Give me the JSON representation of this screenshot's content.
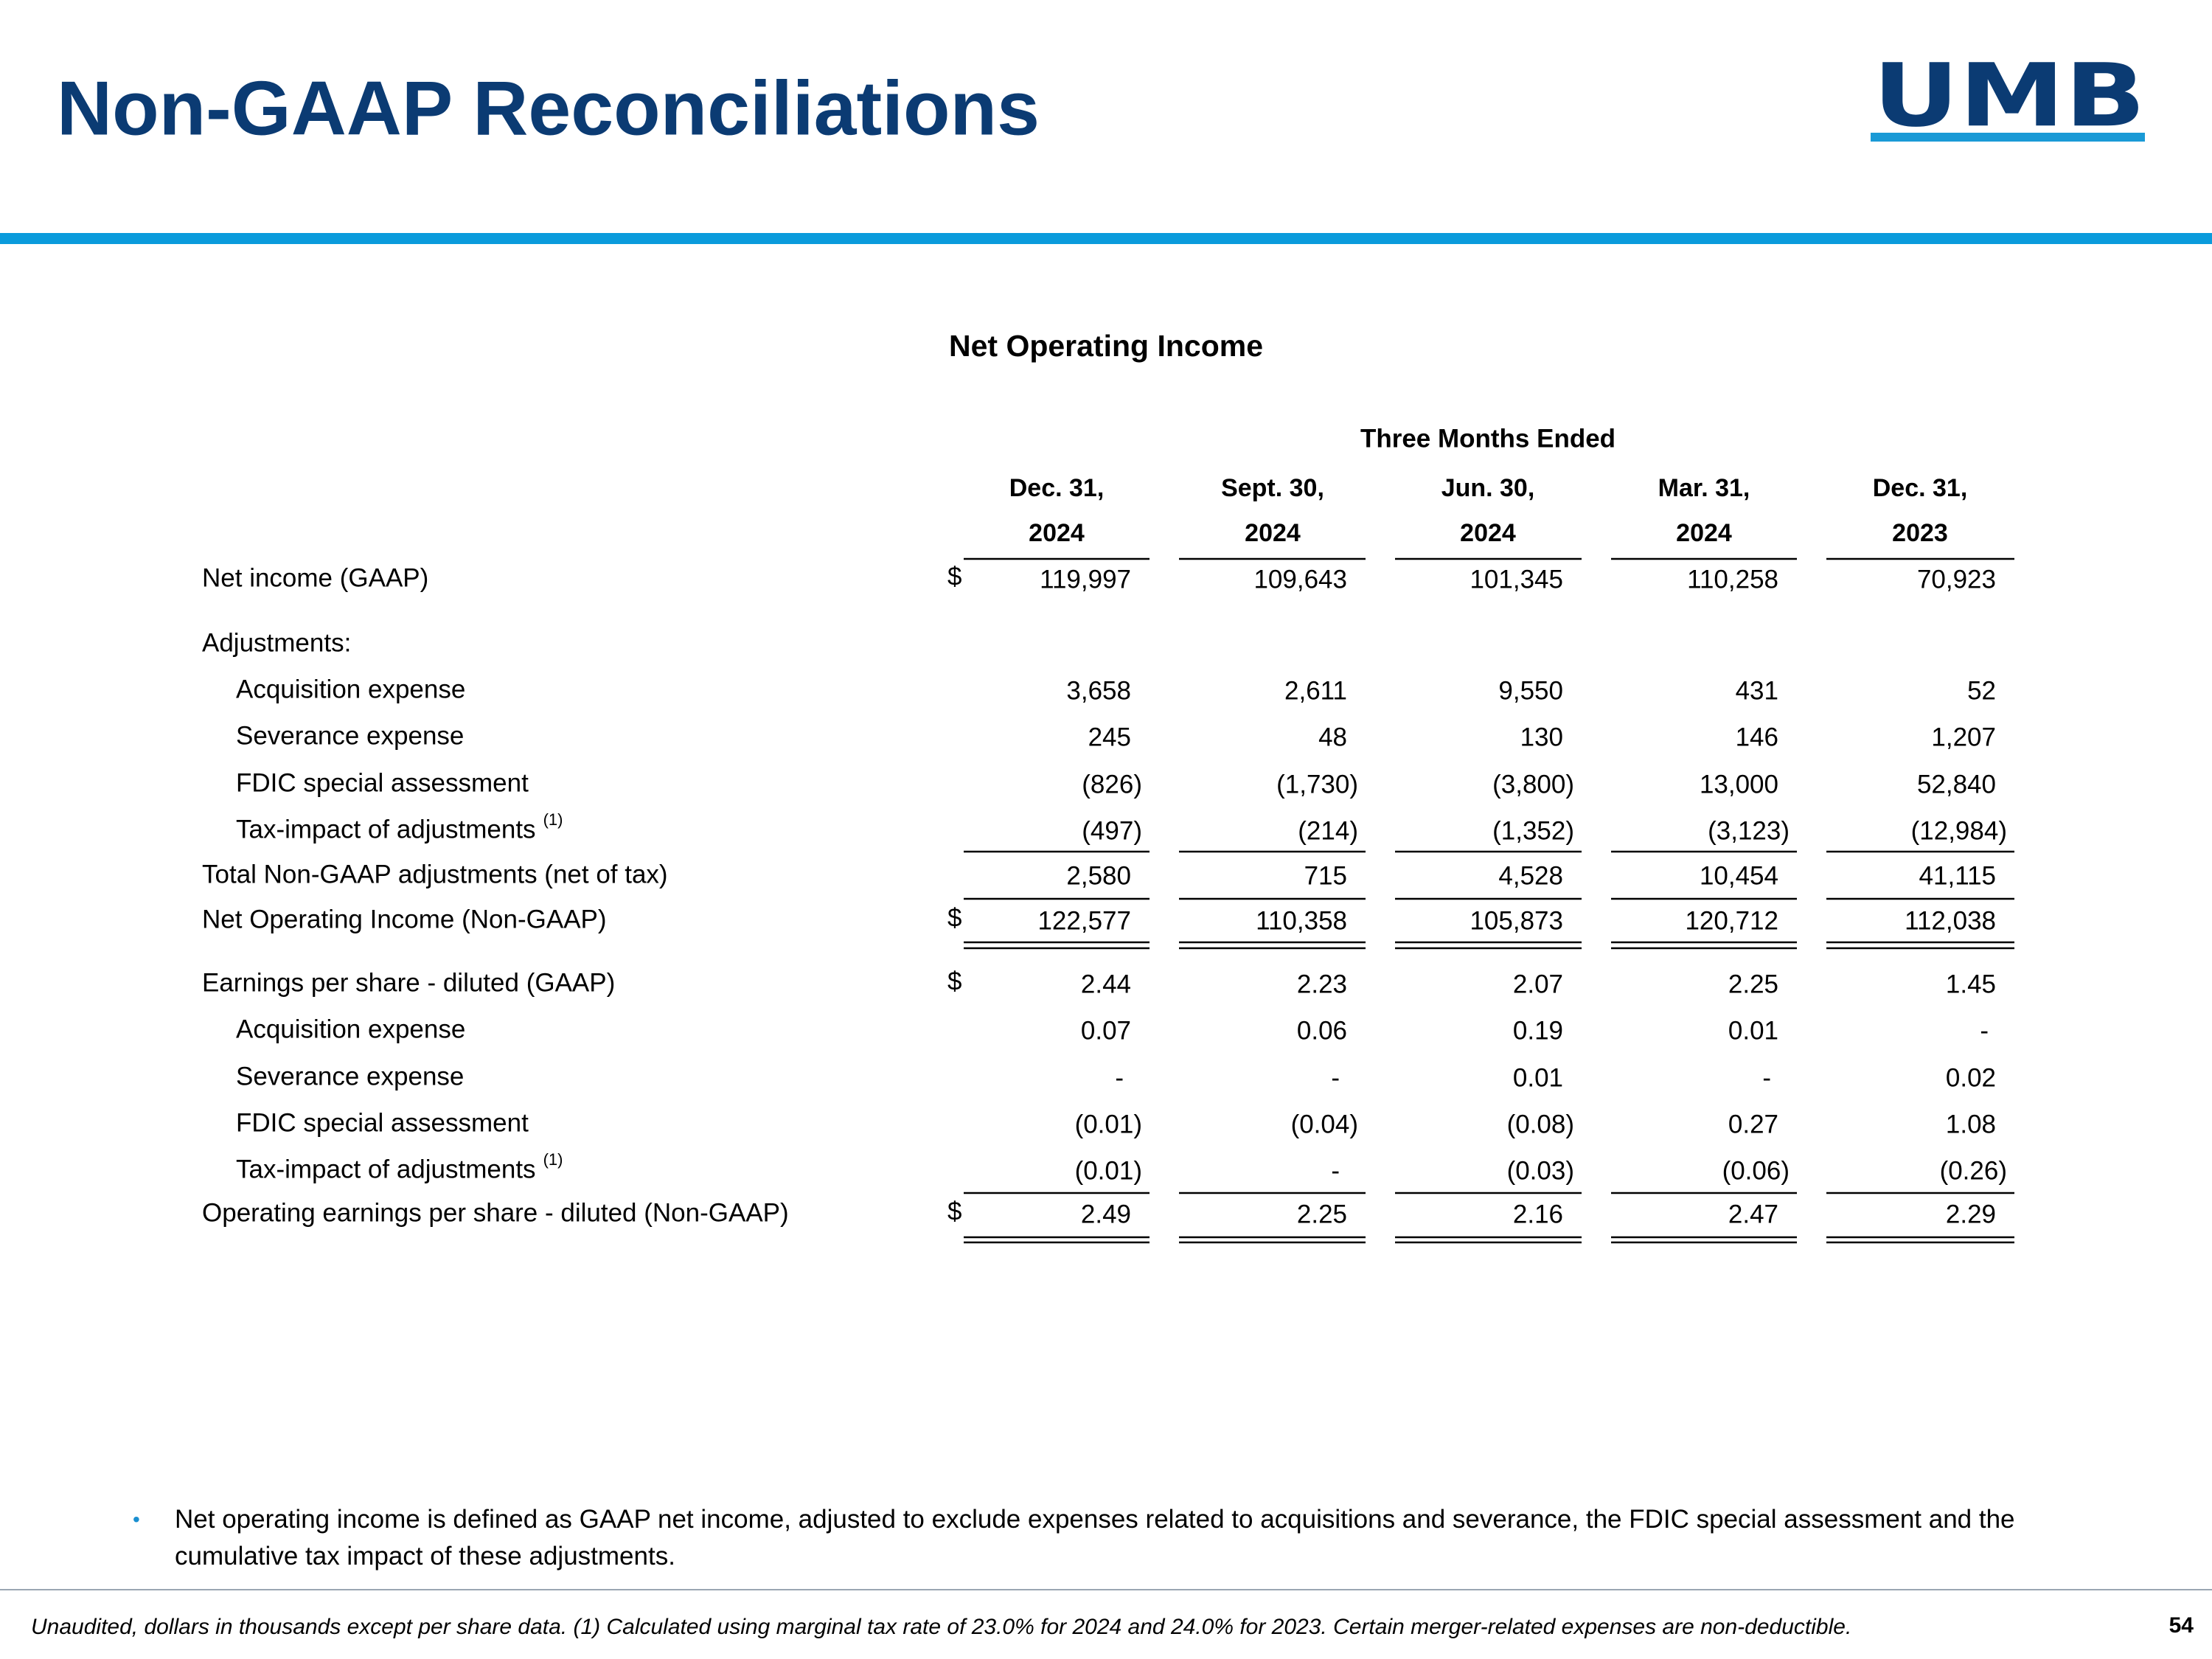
{
  "header": {
    "title": "Non-GAAP Reconciliations",
    "logo": "UMB"
  },
  "table": {
    "title": "Net Operating Income",
    "group_header": "Three Months Ended",
    "columns": [
      [
        "Dec. 31,",
        "2024"
      ],
      [
        "Sept. 30,",
        "2024"
      ],
      [
        "Jun. 30,",
        "2024"
      ],
      [
        "Mar. 31,",
        "2024"
      ],
      [
        "Dec. 31,",
        "2023"
      ]
    ],
    "rows": [
      {
        "label": "Net income (GAAP)",
        "currency": "$",
        "values": [
          "119,997",
          "109,643",
          "101,345",
          "110,258",
          "70,923"
        ]
      },
      {
        "label": "Adjustments:"
      },
      {
        "label": "Acquisition expense",
        "values": [
          "3,658",
          "2,611",
          "9,550",
          "431",
          "52"
        ]
      },
      {
        "label": "Severance expense",
        "values": [
          "245",
          "48",
          "130",
          "146",
          "1,207"
        ]
      },
      {
        "label": "FDIC special assessment",
        "values": [
          "(826)",
          "(1,730)",
          "(3,800)",
          "13,000",
          "52,840"
        ]
      },
      {
        "label": "Tax-impact of adjustments",
        "note": "(1)",
        "values": [
          "(497)",
          "(214)",
          "(1,352)",
          "(3,123)",
          "(12,984)"
        ]
      },
      {
        "label": "Total Non-GAAP adjustments (net of tax)",
        "values": [
          "2,580",
          "715",
          "4,528",
          "10,454",
          "41,115"
        ]
      },
      {
        "label": "Net Operating Income (Non-GAAP)",
        "currency": "$",
        "values": [
          "122,577",
          "110,358",
          "105,873",
          "120,712",
          "112,038"
        ]
      },
      {
        "label": "Earnings per share  - diluted (GAAP)",
        "currency": "$",
        "values": [
          "2.44",
          "2.23",
          "2.07",
          "2.25",
          "1.45"
        ]
      },
      {
        "label": "Acquisition expense",
        "values": [
          "0.07",
          "0.06",
          "0.19",
          "0.01",
          "-"
        ]
      },
      {
        "label": "Severance expense",
        "values": [
          "-",
          "-",
          "0.01",
          "-",
          "0.02"
        ]
      },
      {
        "label": "FDIC special assessment",
        "values": [
          "(0.01)",
          "(0.04)",
          "(0.08)",
          "0.27",
          "1.08"
        ]
      },
      {
        "label": "Tax-impact of adjustments",
        "note": "(1)",
        "values": [
          "(0.01)",
          "-",
          "(0.03)",
          "(0.06)",
          "(0.26)"
        ]
      },
      {
        "label": "Operating earnings per share - diluted (Non-GAAP)",
        "currency": "$",
        "values": [
          "2.49",
          "2.25",
          "2.16",
          "2.47",
          "2.29"
        ]
      }
    ]
  },
  "bullets": [
    "Net operating income is defined as GAAP net income, adjusted to exclude expenses related to acquisitions and severance, the FDIC special assessment and the cumulative tax impact of these adjustments."
  ],
  "footer": {
    "note": "Unaudited, dollars in thousands except per share data. (1) Calculated using marginal tax rate of 23.0% for 2024 and 24.0% for 2023. Certain merger-related expenses are non-deductible.",
    "page": "54"
  }
}
